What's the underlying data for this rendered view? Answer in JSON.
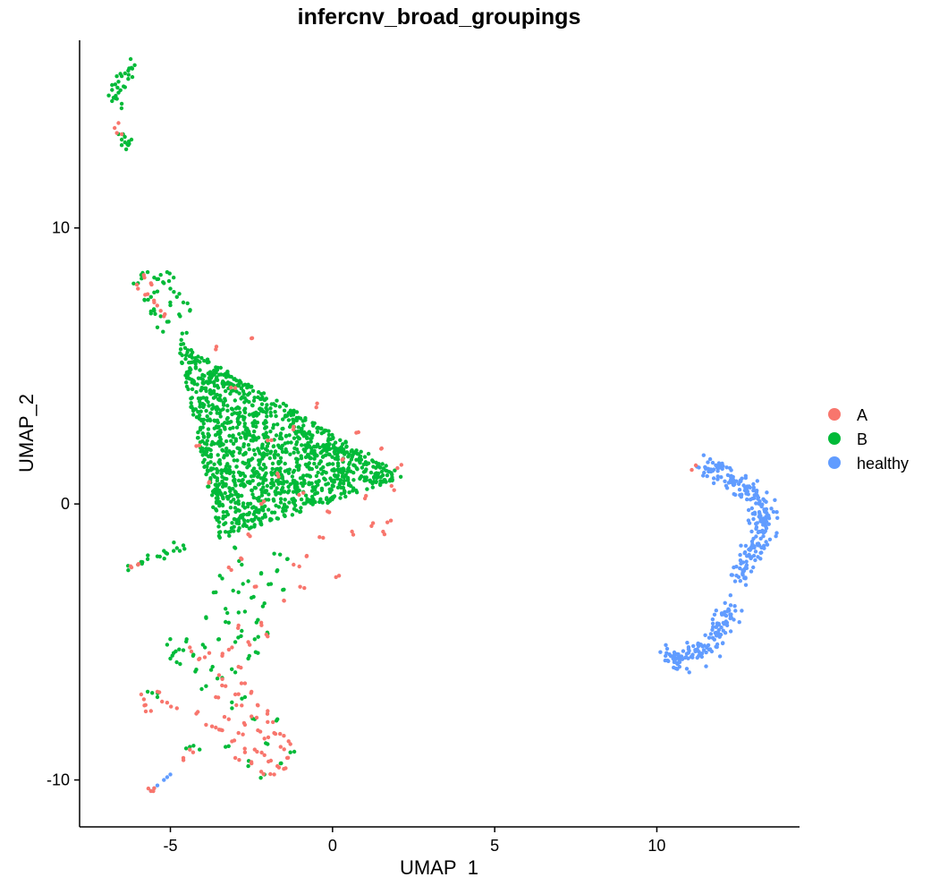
{
  "chart_data": {
    "type": "scatter",
    "title": "infercnv_broad_groupings",
    "xlabel": "UMAP_1",
    "ylabel": "UMAP_2",
    "xlim": [
      -7.8,
      14.4
    ],
    "ylim": [
      -11.7,
      16.8
    ],
    "x_ticks": [
      -5,
      0,
      5,
      10
    ],
    "y_ticks": [
      -10,
      0,
      10
    ],
    "x_tick_labels": [
      "-5",
      "0",
      "5",
      "10"
    ],
    "y_tick_labels": [
      "-10",
      "0",
      "10"
    ],
    "grid": false,
    "legend_position": "right",
    "legend": [
      "A",
      "B",
      "healthy"
    ],
    "colors": {
      "A": "#F8766D",
      "B": "#00BA38",
      "healthy": "#619CFF"
    },
    "series": [
      {
        "name": "A",
        "points": [
          [
            -5.8,
            8.2
          ],
          [
            -5.6,
            8.0
          ],
          [
            -6.0,
            7.8
          ],
          [
            -5.5,
            7.3
          ],
          [
            -5.3,
            7.0
          ],
          [
            -6.6,
            13.8
          ],
          [
            -6.5,
            13.4
          ],
          [
            -5.9,
            -6.9
          ],
          [
            -5.8,
            -7.3
          ],
          [
            -5.6,
            -7.5
          ],
          [
            -5.4,
            -6.8
          ],
          [
            -5.1,
            -7.2
          ],
          [
            -4.8,
            -7.4
          ],
          [
            -4.2,
            -7.6
          ],
          [
            -3.9,
            -8.0
          ],
          [
            -3.6,
            -8.1
          ],
          [
            -4.6,
            -9.2
          ],
          [
            -4.3,
            -9.0
          ],
          [
            -5.6,
            -10.4
          ],
          [
            -5.5,
            -10.3
          ],
          [
            -3.5,
            -6.2
          ],
          [
            -3.4,
            -5.5
          ],
          [
            -3.1,
            -5.2
          ],
          [
            -2.9,
            -5.9
          ],
          [
            -2.7,
            -6.5
          ],
          [
            -2.6,
            -5.0
          ],
          [
            -2.5,
            -6.8
          ],
          [
            -3.0,
            -6.9
          ],
          [
            -2.8,
            -7.3
          ],
          [
            -3.2,
            -7.8
          ],
          [
            -3.4,
            -8.2
          ],
          [
            -3.1,
            -8.6
          ],
          [
            -2.9,
            -8.3
          ],
          [
            -2.7,
            -8.0
          ],
          [
            -2.5,
            -7.7
          ],
          [
            -2.3,
            -8.2
          ],
          [
            -2.1,
            -8.5
          ],
          [
            -2.0,
            -7.9
          ],
          [
            -1.8,
            -8.3
          ],
          [
            -1.6,
            -8.8
          ],
          [
            -1.4,
            -9.2
          ],
          [
            -1.5,
            -9.6
          ],
          [
            -1.8,
            -9.8
          ],
          [
            -2.2,
            -9.7
          ],
          [
            -2.5,
            -9.4
          ],
          [
            -2.7,
            -9.0
          ],
          [
            -3.0,
            -9.2
          ],
          [
            -2.4,
            -8.9
          ],
          [
            -2.1,
            -9.1
          ],
          [
            -1.9,
            -9.3
          ],
          [
            -1.7,
            -9.5
          ],
          [
            -1.3,
            -8.7
          ],
          [
            -1.5,
            -8.4
          ],
          [
            -2.0,
            -7.5
          ],
          [
            -2.3,
            -7.3
          ],
          [
            -3.6,
            -7.0
          ],
          [
            -3.3,
            -6.6
          ],
          [
            -3.8,
            -5.4
          ],
          [
            -4.1,
            -5.6
          ],
          [
            -4.4,
            -5.2
          ],
          [
            -2.2,
            -4.3
          ],
          [
            -2.0,
            -4.8
          ],
          [
            -3.2,
            -2.3
          ],
          [
            -2.8,
            -2.0
          ],
          [
            -1.5,
            -3.5
          ],
          [
            -1.2,
            -2.2
          ],
          [
            -0.8,
            -1.9
          ],
          [
            -0.4,
            -1.2
          ],
          [
            -0.1,
            -0.3
          ],
          [
            0.6,
            -1.0
          ],
          [
            1.2,
            -0.8
          ],
          [
            1.6,
            -1.1
          ],
          [
            1.8,
            -0.6
          ],
          [
            1.9,
            0.5
          ],
          [
            2.0,
            1.3
          ],
          [
            1.5,
            2.0
          ],
          [
            0.8,
            2.6
          ],
          [
            -0.5,
            3.5
          ],
          [
            -1.2,
            2.8
          ],
          [
            -2.0,
            2.3
          ],
          [
            -3.0,
            4.2
          ],
          [
            -3.6,
            5.6
          ],
          [
            -2.5,
            6.0
          ],
          [
            -4.2,
            2.1
          ],
          [
            -3.8,
            0.8
          ],
          [
            -2.2,
            0.0
          ],
          [
            -1.7,
            1.1
          ],
          [
            -0.9,
            0.4
          ],
          [
            0.3,
            1.6
          ],
          [
            1.0,
            0.2
          ],
          [
            -2.6,
            -1.1
          ],
          [
            -1.0,
            -3.0
          ],
          [
            0.2,
            -2.6
          ],
          [
            -6.2,
            -2.3
          ],
          [
            -6.0,
            -2.2
          ],
          [
            11.2,
            1.4
          ],
          [
            -5.7,
            7.6
          ],
          [
            -5.2,
            6.8
          ],
          [
            -2.4,
            -3.0
          ],
          [
            -2.9,
            -4.4
          ]
        ]
      },
      {
        "name": "B",
        "cluster": {
          "triangle_vertices": [
            [
              -4.8,
              5.9
            ],
            [
              -3.5,
              -1.3
            ],
            [
              2.3,
              1.0
            ]
          ],
          "count": 1350
        },
        "points": [
          [
            -6.9,
            14.8
          ],
          [
            -6.8,
            15.0
          ],
          [
            -6.7,
            15.2
          ],
          [
            -6.6,
            15.3
          ],
          [
            -6.5,
            15.5
          ],
          [
            -6.4,
            15.6
          ],
          [
            -6.3,
            15.7
          ],
          [
            -6.2,
            15.8
          ],
          [
            -6.1,
            15.9
          ],
          [
            -6.8,
            14.6
          ],
          [
            -6.6,
            14.9
          ],
          [
            -6.4,
            15.1
          ],
          [
            -6.3,
            15.4
          ],
          [
            -6.7,
            14.7
          ],
          [
            -6.5,
            14.5
          ],
          [
            -6.6,
            13.4
          ],
          [
            -6.5,
            13.2
          ],
          [
            -6.4,
            13.1
          ],
          [
            -6.3,
            13.0
          ],
          [
            -6.2,
            13.2
          ],
          [
            -6.5,
            13.0
          ],
          [
            -5.9,
            8.3
          ],
          [
            -5.7,
            8.4
          ],
          [
            -5.5,
            8.2
          ],
          [
            -5.3,
            8.3
          ],
          [
            -5.2,
            8.0
          ],
          [
            -5.4,
            7.7
          ],
          [
            -5.6,
            7.5
          ],
          [
            -5.8,
            7.4
          ],
          [
            -5.5,
            7.0
          ],
          [
            -5.3,
            6.8
          ],
          [
            -5.0,
            7.2
          ],
          [
            -4.8,
            7.5
          ],
          [
            -4.6,
            7.3
          ],
          [
            -4.4,
            7.0
          ],
          [
            -5.1,
            6.6
          ],
          [
            -5.6,
            6.9
          ],
          [
            -6.0,
            8.0
          ],
          [
            -5.1,
            8.4
          ],
          [
            -4.9,
            8.2
          ],
          [
            -5.4,
            6.4
          ],
          [
            -4.7,
            6.8
          ],
          [
            -4.5,
            6.2
          ],
          [
            -4.6,
            5.8
          ],
          [
            -5.0,
            7.8
          ],
          [
            -6.3,
            -2.4
          ],
          [
            -6.0,
            -2.2
          ],
          [
            -5.7,
            -2.0
          ],
          [
            -5.4,
            -1.9
          ],
          [
            -5.1,
            -1.8
          ],
          [
            -4.8,
            -1.6
          ],
          [
            -4.6,
            -1.5
          ],
          [
            -5.9,
            -2.1
          ],
          [
            -5.2,
            -1.7
          ],
          [
            -4.9,
            -1.7
          ],
          [
            -3.0,
            -1.6
          ],
          [
            -2.8,
            -2.2
          ],
          [
            -2.6,
            -2.8
          ],
          [
            -2.5,
            -3.4
          ],
          [
            -2.7,
            -3.9
          ],
          [
            -2.3,
            -4.2
          ],
          [
            -2.1,
            -3.6
          ],
          [
            -1.9,
            -2.9
          ],
          [
            -1.7,
            -2.4
          ],
          [
            -1.5,
            -3.1
          ],
          [
            -2.0,
            -4.7
          ],
          [
            -2.4,
            -4.9
          ],
          [
            -2.8,
            -4.6
          ],
          [
            -3.2,
            -4.3
          ],
          [
            -3.0,
            -5.0
          ],
          [
            -2.6,
            -5.6
          ],
          [
            -3.3,
            -3.8
          ],
          [
            -1.8,
            -1.8
          ],
          [
            -1.4,
            -2.0
          ],
          [
            -2.2,
            -2.5
          ],
          [
            -3.4,
            -2.7
          ],
          [
            -2.9,
            -3.2
          ],
          [
            -2.3,
            -5.4
          ],
          [
            -3.5,
            -4.9
          ],
          [
            -3.7,
            -5.9
          ],
          [
            -3.4,
            -6.3
          ],
          [
            -3.9,
            -6.6
          ],
          [
            -4.0,
            -5.1
          ],
          [
            -4.3,
            -5.5
          ],
          [
            -4.6,
            -5.3
          ],
          [
            -4.9,
            -5.4
          ],
          [
            -5.1,
            -5.1
          ],
          [
            -4.2,
            -6.0
          ],
          [
            -4.7,
            -5.8
          ],
          [
            -4.5,
            -4.9
          ],
          [
            -5.0,
            -5.6
          ],
          [
            -3.0,
            -6.1
          ],
          [
            -2.7,
            -7.0
          ],
          [
            -3.1,
            -7.4
          ],
          [
            -2.4,
            -7.8
          ],
          [
            -2.0,
            -8.7
          ],
          [
            -1.6,
            -9.4
          ],
          [
            -2.1,
            -9.8
          ],
          [
            -2.6,
            -9.5
          ],
          [
            -1.3,
            -9.0
          ],
          [
            -1.7,
            -7.8
          ],
          [
            -3.3,
            -8.8
          ],
          [
            -4.1,
            -8.9
          ],
          [
            -4.4,
            -8.8
          ],
          [
            -5.4,
            -7.0
          ],
          [
            -5.7,
            -6.8
          ],
          [
            -3.6,
            -3.2
          ],
          [
            -3.9,
            -4.1
          ]
        ]
      },
      {
        "name": "healthy",
        "arcs": [
          {
            "from": [
              11.3,
              1.4
            ],
            "ctrl": [
              14.6,
              0.3
            ],
            "to": [
              12.4,
              -2.7
            ],
            "count": 240
          },
          {
            "from": [
              12.3,
              -3.6
            ],
            "ctrl": [
              11.6,
              -5.9
            ],
            "to": [
              10.4,
              -5.5
            ],
            "count": 130
          }
        ],
        "points": [
          [
            -5.6,
            -10.4
          ],
          [
            -5.5,
            -10.3
          ],
          [
            -5.4,
            -10.2
          ],
          [
            -5.2,
            -10.0
          ],
          [
            -5.1,
            -9.9
          ],
          [
            -5.0,
            -9.8
          ],
          [
            10.3,
            -5.4
          ],
          [
            10.5,
            -5.6
          ],
          [
            10.7,
            -5.9
          ],
          [
            11.0,
            -6.1
          ]
        ]
      }
    ]
  }
}
